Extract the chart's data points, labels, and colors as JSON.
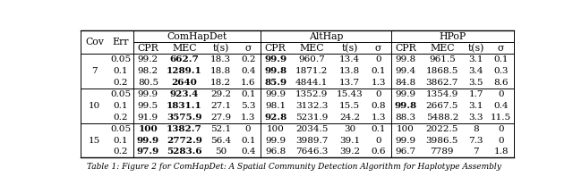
{
  "caption": "Table 1: Figure 2 for ComHapDet: A Spatial Community Detection Algorithm for Haplotype Assembly",
  "col_groups": [
    "ComHapDet",
    "AltHap",
    "HPoP"
  ],
  "sub_cols": [
    "CPR",
    "MEC",
    "t(s)",
    "σ"
  ],
  "row_groups": [
    7,
    10,
    15
  ],
  "err_vals": [
    "0.05",
    "0.1",
    "0.2"
  ],
  "data": {
    "ComHapDet": [
      [
        "99.2",
        "662.7",
        "18.3",
        "0.2"
      ],
      [
        "98.2",
        "1289.1",
        "18.8",
        "0.4"
      ],
      [
        "80.5",
        "2640",
        "18.2",
        "1.6"
      ],
      [
        "99.9",
        "923.4",
        "29.2",
        "0.1"
      ],
      [
        "99.5",
        "1831.1",
        "27.1",
        "5.3"
      ],
      [
        "91.9",
        "3575.9",
        "27.9",
        "1.3"
      ],
      [
        "100",
        "1382.7",
        "52.1",
        "0"
      ],
      [
        "99.9",
        "2772.9",
        "56.4",
        "0.1"
      ],
      [
        "97.9",
        "5283.6",
        "50",
        "0.4"
      ]
    ],
    "AltHap": [
      [
        "99.9",
        "960.7",
        "13.4",
        "0"
      ],
      [
        "99.8",
        "1871.2",
        "13.8",
        "0.1"
      ],
      [
        "85.9",
        "4844.1",
        "13.7",
        "1.3"
      ],
      [
        "99.9",
        "1352.9",
        "15.43",
        "0"
      ],
      [
        "98.1",
        "3132.3",
        "15.5",
        "0.8"
      ],
      [
        "92.8",
        "5231.9",
        "24.2",
        "1.3"
      ],
      [
        "100",
        "2034.5",
        "30",
        "0.1"
      ],
      [
        "99.9",
        "3989.7",
        "39.1",
        "0"
      ],
      [
        "96.8",
        "7646.3",
        "39.2",
        "0.6"
      ]
    ],
    "HPoP": [
      [
        "99.8",
        "961.5",
        "3.1",
        "0.1"
      ],
      [
        "99.4",
        "1868.5",
        "3.4",
        "0.3"
      ],
      [
        "84.8",
        "3862.7",
        "3.5",
        "8.6"
      ],
      [
        "99.9",
        "1354.9",
        "1.7",
        "0"
      ],
      [
        "99.8",
        "2667.5",
        "3.1",
        "0.4"
      ],
      [
        "88.3",
        "5488.2",
        "3.3",
        "11.5"
      ],
      [
        "100",
        "2022.5",
        "8",
        "0"
      ],
      [
        "99.9",
        "3986.5",
        "7.3",
        "0"
      ],
      [
        "96.7",
        "7789",
        "7",
        "1.8"
      ]
    ]
  },
  "bold": {
    "ComHapDet": [
      [
        false,
        true,
        false,
        false
      ],
      [
        false,
        true,
        false,
        false
      ],
      [
        false,
        true,
        false,
        false
      ],
      [
        false,
        true,
        false,
        false
      ],
      [
        false,
        true,
        false,
        false
      ],
      [
        false,
        true,
        false,
        false
      ],
      [
        true,
        true,
        false,
        false
      ],
      [
        true,
        true,
        false,
        false
      ],
      [
        true,
        true,
        false,
        false
      ]
    ],
    "AltHap": [
      [
        true,
        false,
        false,
        false
      ],
      [
        true,
        false,
        false,
        false
      ],
      [
        true,
        false,
        false,
        false
      ],
      [
        false,
        false,
        false,
        false
      ],
      [
        false,
        false,
        false,
        false
      ],
      [
        true,
        false,
        false,
        false
      ],
      [
        false,
        false,
        false,
        false
      ],
      [
        false,
        false,
        false,
        false
      ],
      [
        false,
        false,
        false,
        false
      ]
    ],
    "HPoP": [
      [
        false,
        false,
        false,
        false
      ],
      [
        false,
        false,
        false,
        false
      ],
      [
        false,
        false,
        false,
        false
      ],
      [
        false,
        false,
        false,
        false
      ],
      [
        true,
        false,
        false,
        false
      ],
      [
        false,
        false,
        false,
        false
      ],
      [
        false,
        false,
        false,
        false
      ],
      [
        false,
        false,
        false,
        false
      ],
      [
        false,
        false,
        false,
        false
      ]
    ]
  },
  "bg_color": "#ffffff",
  "text_color": "#000000",
  "line_color": "#000000",
  "fontsize_header": 7.8,
  "fontsize_data": 7.5,
  "fontsize_caption": 6.5
}
